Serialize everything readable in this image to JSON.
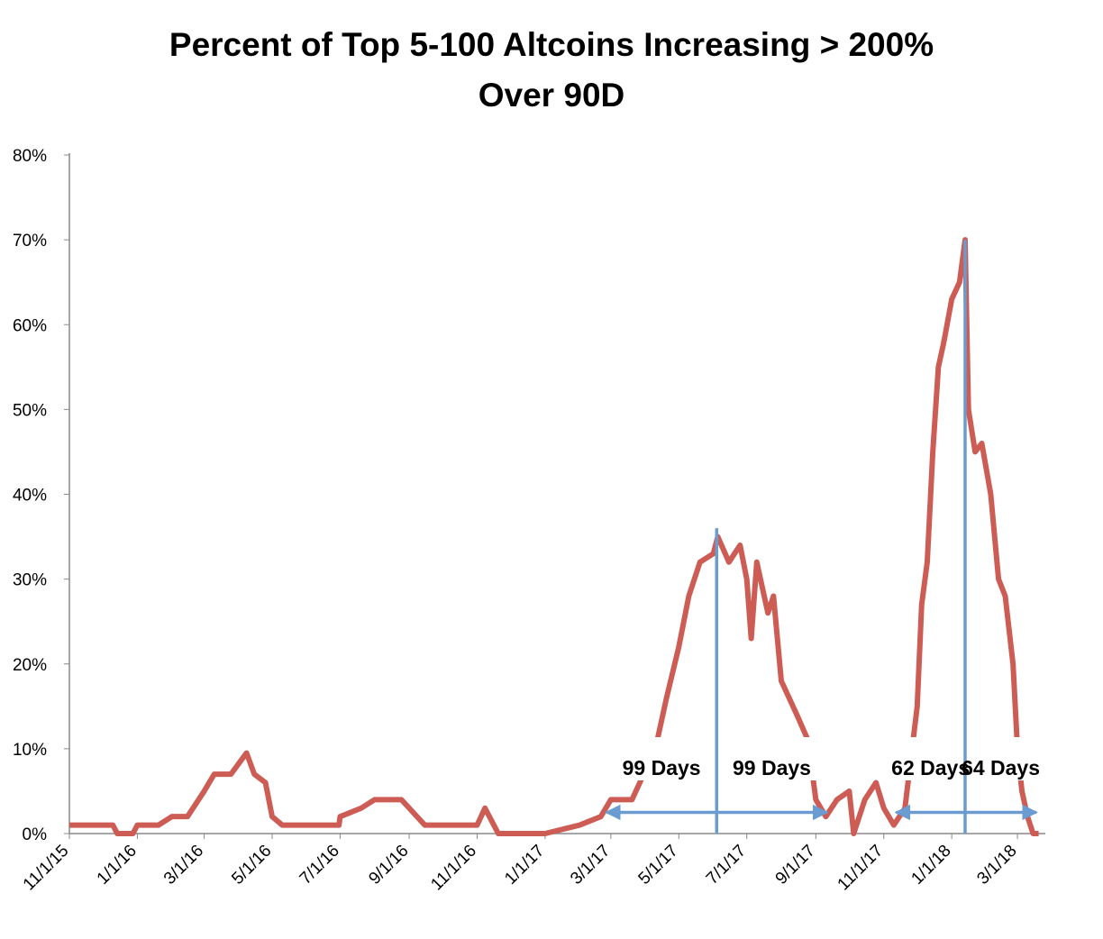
{
  "chart_data": {
    "type": "line",
    "title": "Percent of Top 5-100 Altcoins Increasing > 200%",
    "subtitle": "Over 90D",
    "x": [
      "11/1/15",
      "12/10/15",
      "12/14/15",
      "12/28/15",
      "1/1/16",
      "1/20/16",
      "2/1/16",
      "2/15/16",
      "3/1/16",
      "3/10/16",
      "3/25/16",
      "4/8/16",
      "4/15/16",
      "4/25/16",
      "5/1/16",
      "5/10/16",
      "6/1/16",
      "6/30/16",
      "7/1/16",
      "7/20/16",
      "8/1/16",
      "8/25/16",
      "9/1/16",
      "9/15/16",
      "10/1/16",
      "11/1/16",
      "11/8/16",
      "11/20/16",
      "12/1/16",
      "1/1/17",
      "2/1/17",
      "2/20/17",
      "3/1/17",
      "3/20/17",
      "4/10/17",
      "4/20/17",
      "5/1/17",
      "5/10/17",
      "5/20/17",
      "6/1/17",
      "6/5/17",
      "6/15/17",
      "6/25/17",
      "7/1/17",
      "7/5/17",
      "7/10/17",
      "7/20/17",
      "7/25/17",
      "8/1/17",
      "8/15/17",
      "8/25/17",
      "9/1/17",
      "9/10/17",
      "9/20/17",
      "10/1/17",
      "10/5/17",
      "10/15/17",
      "10/25/17",
      "11/1/17",
      "11/10/17",
      "11/20/17",
      "12/1/17",
      "12/5/17",
      "12/10/17",
      "12/15/17",
      "12/20/17",
      "12/25/17",
      "1/1/18",
      "1/8/18",
      "1/13/18",
      "1/16/18",
      "1/22/18",
      "1/28/18",
      "2/5/18",
      "2/12/18",
      "2/18/18",
      "2/25/18",
      "3/1/18",
      "3/5/18",
      "3/10/18",
      "3/15/18",
      "3/20/18"
    ],
    "series": [
      {
        "color": "#cd5c55",
        "values": [
          1,
          1,
          0,
          0,
          1,
          1,
          2,
          2,
          5,
          7,
          7,
          9.5,
          7,
          6,
          2,
          1,
          1,
          1,
          2,
          3,
          4,
          4,
          3,
          1,
          1,
          1,
          3,
          0,
          0,
          0,
          1,
          2,
          4,
          4,
          10,
          16,
          22,
          28,
          32,
          33,
          35,
          32,
          34,
          30,
          23,
          32,
          26,
          28,
          18,
          14,
          11,
          4,
          2,
          4,
          5,
          0,
          4,
          6,
          3,
          1,
          3,
          15,
          27,
          32,
          45,
          55,
          58,
          63,
          65,
          70,
          50,
          45,
          46,
          40,
          30,
          28,
          20,
          10,
          5,
          2,
          0,
          0
        ]
      }
    ],
    "xlim": [
      "11/1/15",
      "3/26/18"
    ],
    "xticks": [
      "11/1/15",
      "1/1/16",
      "3/1/16",
      "5/1/16",
      "7/1/16",
      "9/1/16",
      "11/1/16",
      "1/1/17",
      "3/1/17",
      "5/1/17",
      "7/1/17",
      "9/1/17",
      "11/1/17",
      "1/1/18",
      "3/1/18"
    ],
    "ylim": [
      0,
      80
    ],
    "yticks": [
      {
        "value": 0,
        "label": "0%"
      },
      {
        "value": 10,
        "label": "10%"
      },
      {
        "value": 20,
        "label": "20%"
      },
      {
        "value": 30,
        "label": "30%"
      },
      {
        "value": 40,
        "label": "40%"
      },
      {
        "value": 50,
        "label": "50%"
      },
      {
        "value": 60,
        "label": "60%"
      },
      {
        "value": 70,
        "label": "70%"
      },
      {
        "value": 80,
        "label": "80%"
      }
    ],
    "peaks": [
      {
        "x": "6/4/17",
        "value": 36
      },
      {
        "x": "1/13/18",
        "value": 70
      }
    ],
    "annotations": [
      {
        "label": "99 Days",
        "from": "2/25/17",
        "to": "6/4/17"
      },
      {
        "label": "99 Days",
        "from": "6/4/17",
        "to": "9/11/17"
      },
      {
        "label": "62 Days",
        "from": "11/12/17",
        "to": "1/13/18"
      },
      {
        "label": "64 Days",
        "from": "1/13/18",
        "to": "3/18/18"
      }
    ],
    "grid": false
  }
}
